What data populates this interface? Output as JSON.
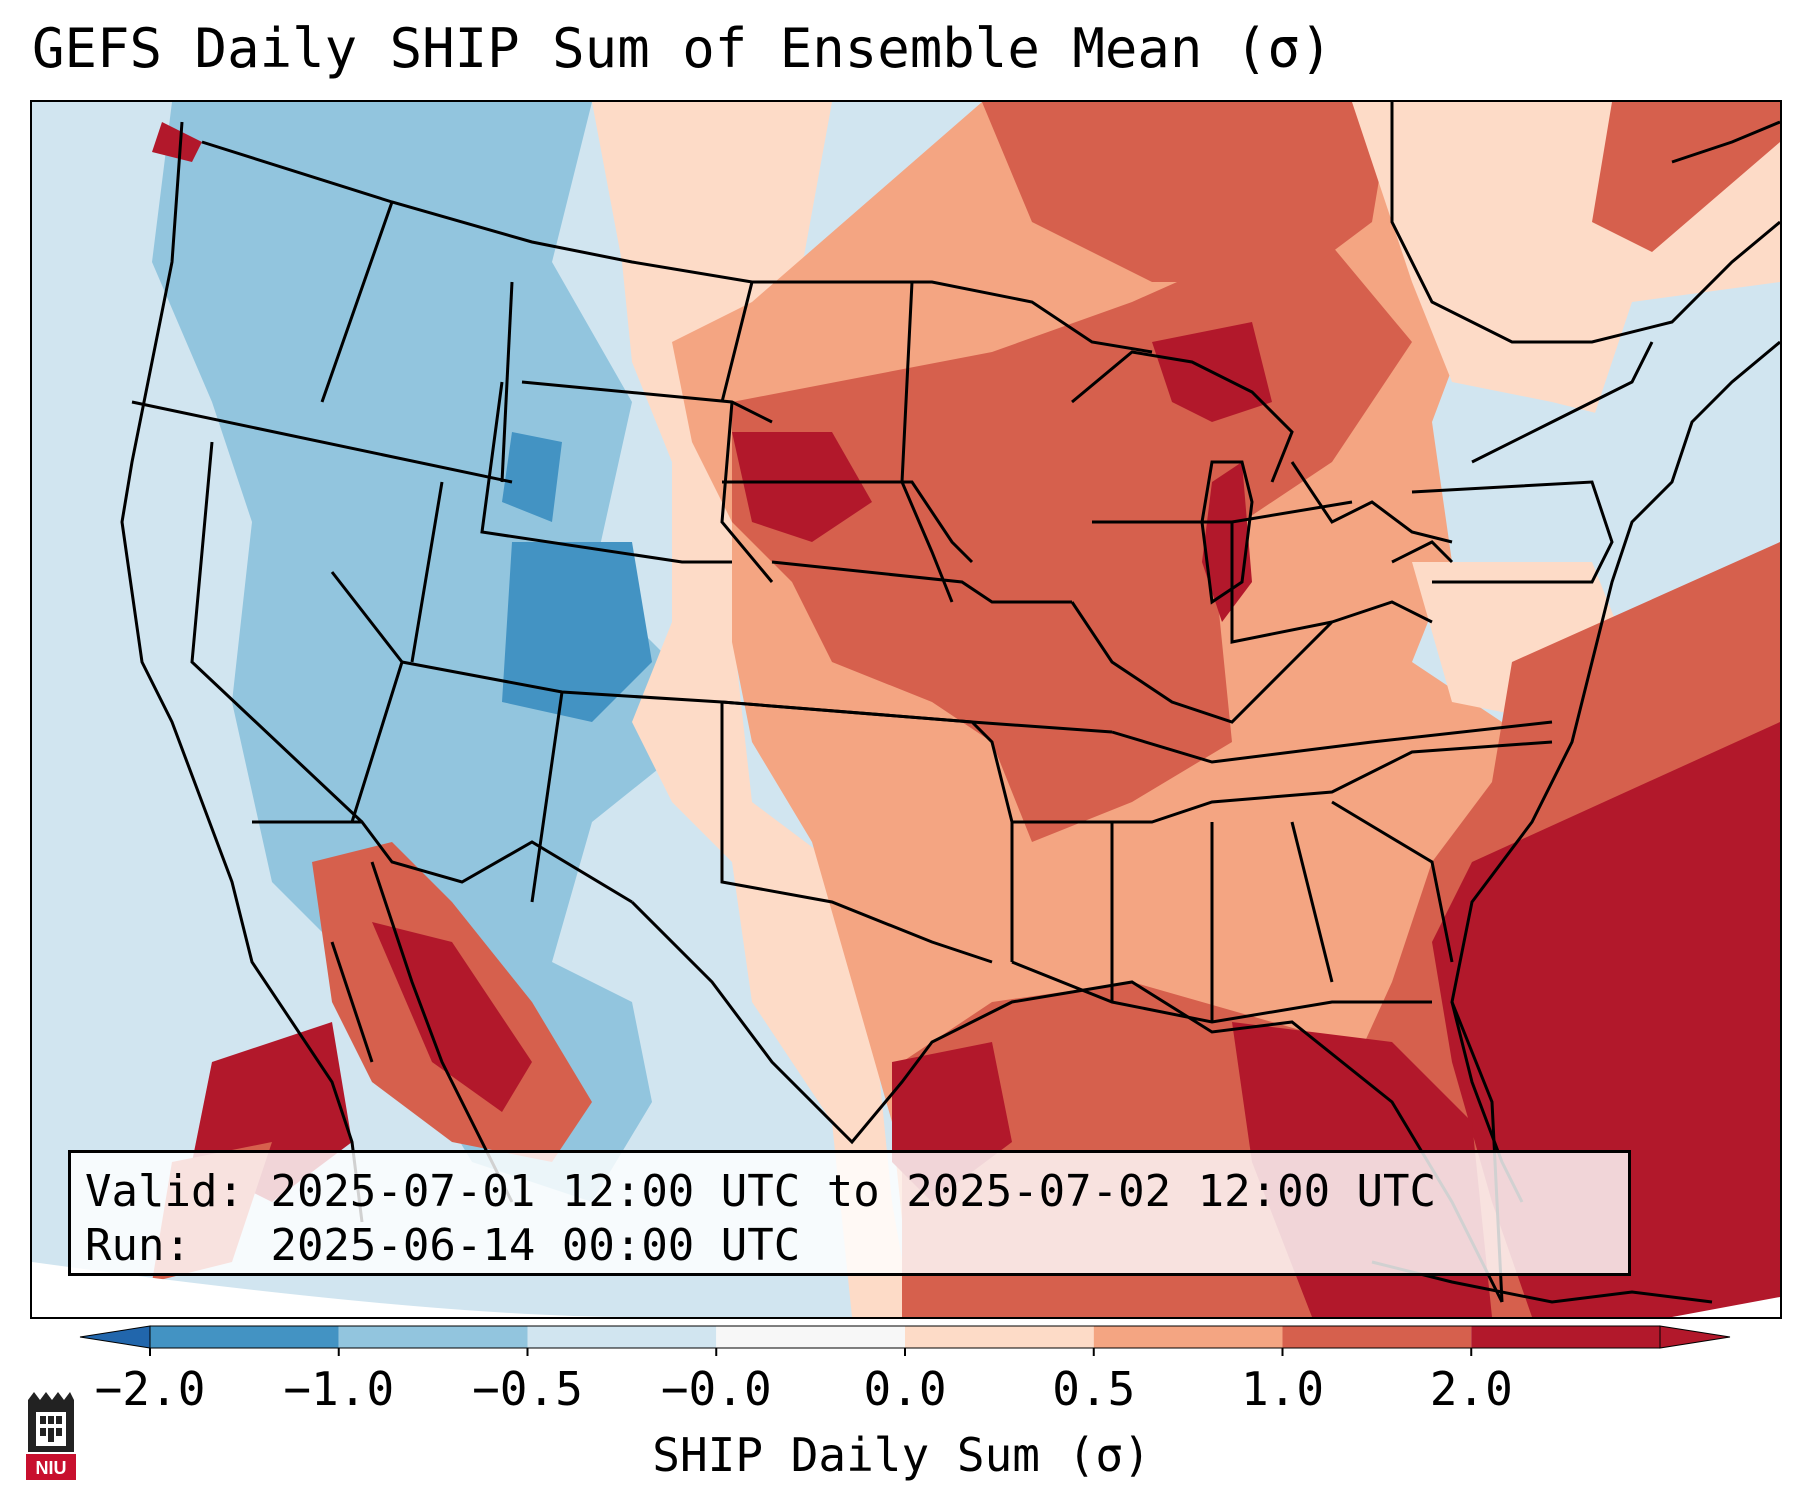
{
  "title": "GEFS Daily SHIP Sum of Ensemble Mean (σ)",
  "info": {
    "valid_label": "Valid:",
    "valid_value": "2025-07-01 12:00 UTC to 2025-07-02 12:00 UTC",
    "run_label": "Run:",
    "run_value": "2025-06-14 00:00 UTC"
  },
  "colorbar": {
    "label": "SHIP Daily Sum (σ)",
    "ticks": [
      "−2.0",
      "−1.0",
      "−0.5",
      "−0.0",
      "0.0",
      "0.5",
      "1.0",
      "2.0"
    ],
    "colors": [
      "#4393c3",
      "#92c5de",
      "#d1e5f0",
      "#f7f7f7",
      "#fddbc7",
      "#f4a582",
      "#d6604d",
      "#b2182b"
    ],
    "extend_low_color": "#2166ac",
    "extend_high_color": "#b2182b"
  },
  "logo": {
    "text": "NIU",
    "icon": "niu-castle-logo-icon",
    "color": "#c8102e"
  }
}
